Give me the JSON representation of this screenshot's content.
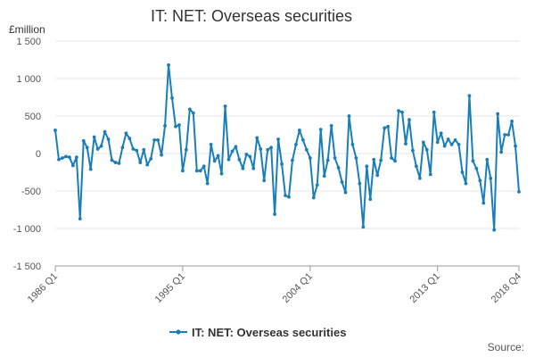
{
  "chart_data": {
    "type": "line",
    "title": "IT: NET: Overseas securities",
    "unit_label": "£million",
    "source": "Source:",
    "legend": [
      "IT: NET: Overseas securities"
    ],
    "xlabel": "",
    "ylabel": "",
    "ylim": [
      -1500,
      1500
    ],
    "y_ticks": [
      1500,
      1000,
      500,
      0,
      -500,
      -1000,
      -1500
    ],
    "y_tick_labels": [
      "1 500",
      "1 000",
      "500",
      "0",
      "-500",
      "-1 000",
      "-1 500"
    ],
    "x_ticks": [
      "1986 Q1",
      "1995 Q1",
      "2004 Q1",
      "2013 Q1",
      "2018 Q4"
    ],
    "color": "#1a7eb8",
    "grid": "horizontal",
    "legend_position": "bottom",
    "start": "1986 Q1",
    "end": "2018 Q4",
    "series": [
      {
        "name": "IT: NET: Overseas securities",
        "values": [
          310,
          -80,
          -60,
          -40,
          -50,
          -160,
          -50,
          -870,
          170,
          80,
          -210,
          220,
          60,
          100,
          290,
          190,
          -90,
          -120,
          -130,
          80,
          270,
          200,
          60,
          40,
          -120,
          50,
          -150,
          -70,
          180,
          180,
          -20,
          370,
          1180,
          740,
          360,
          380,
          -230,
          50,
          590,
          540,
          -230,
          -230,
          -170,
          -400,
          120,
          -100,
          -30,
          -270,
          630,
          -80,
          30,
          90,
          -80,
          -200,
          -10,
          -40,
          -200,
          210,
          60,
          -360,
          50,
          80,
          -810,
          190,
          -140,
          -560,
          -580,
          -90,
          120,
          310,
          180,
          50,
          -60,
          -590,
          -420,
          320,
          -300,
          -90,
          370,
          -60,
          -190,
          -380,
          -520,
          500,
          120,
          -60,
          -400,
          -980,
          -170,
          -610,
          -80,
          -290,
          -90,
          340,
          360,
          -60,
          -100,
          570,
          550,
          130,
          450,
          40,
          -170,
          -330,
          150,
          50,
          -280,
          550,
          150,
          270,
          100,
          190,
          120,
          180,
          120,
          -250,
          -400,
          770,
          -100,
          -200,
          -360,
          -660,
          -80,
          -330,
          -1020,
          530,
          20,
          250,
          250,
          430,
          100,
          -510
        ]
      }
    ]
  }
}
